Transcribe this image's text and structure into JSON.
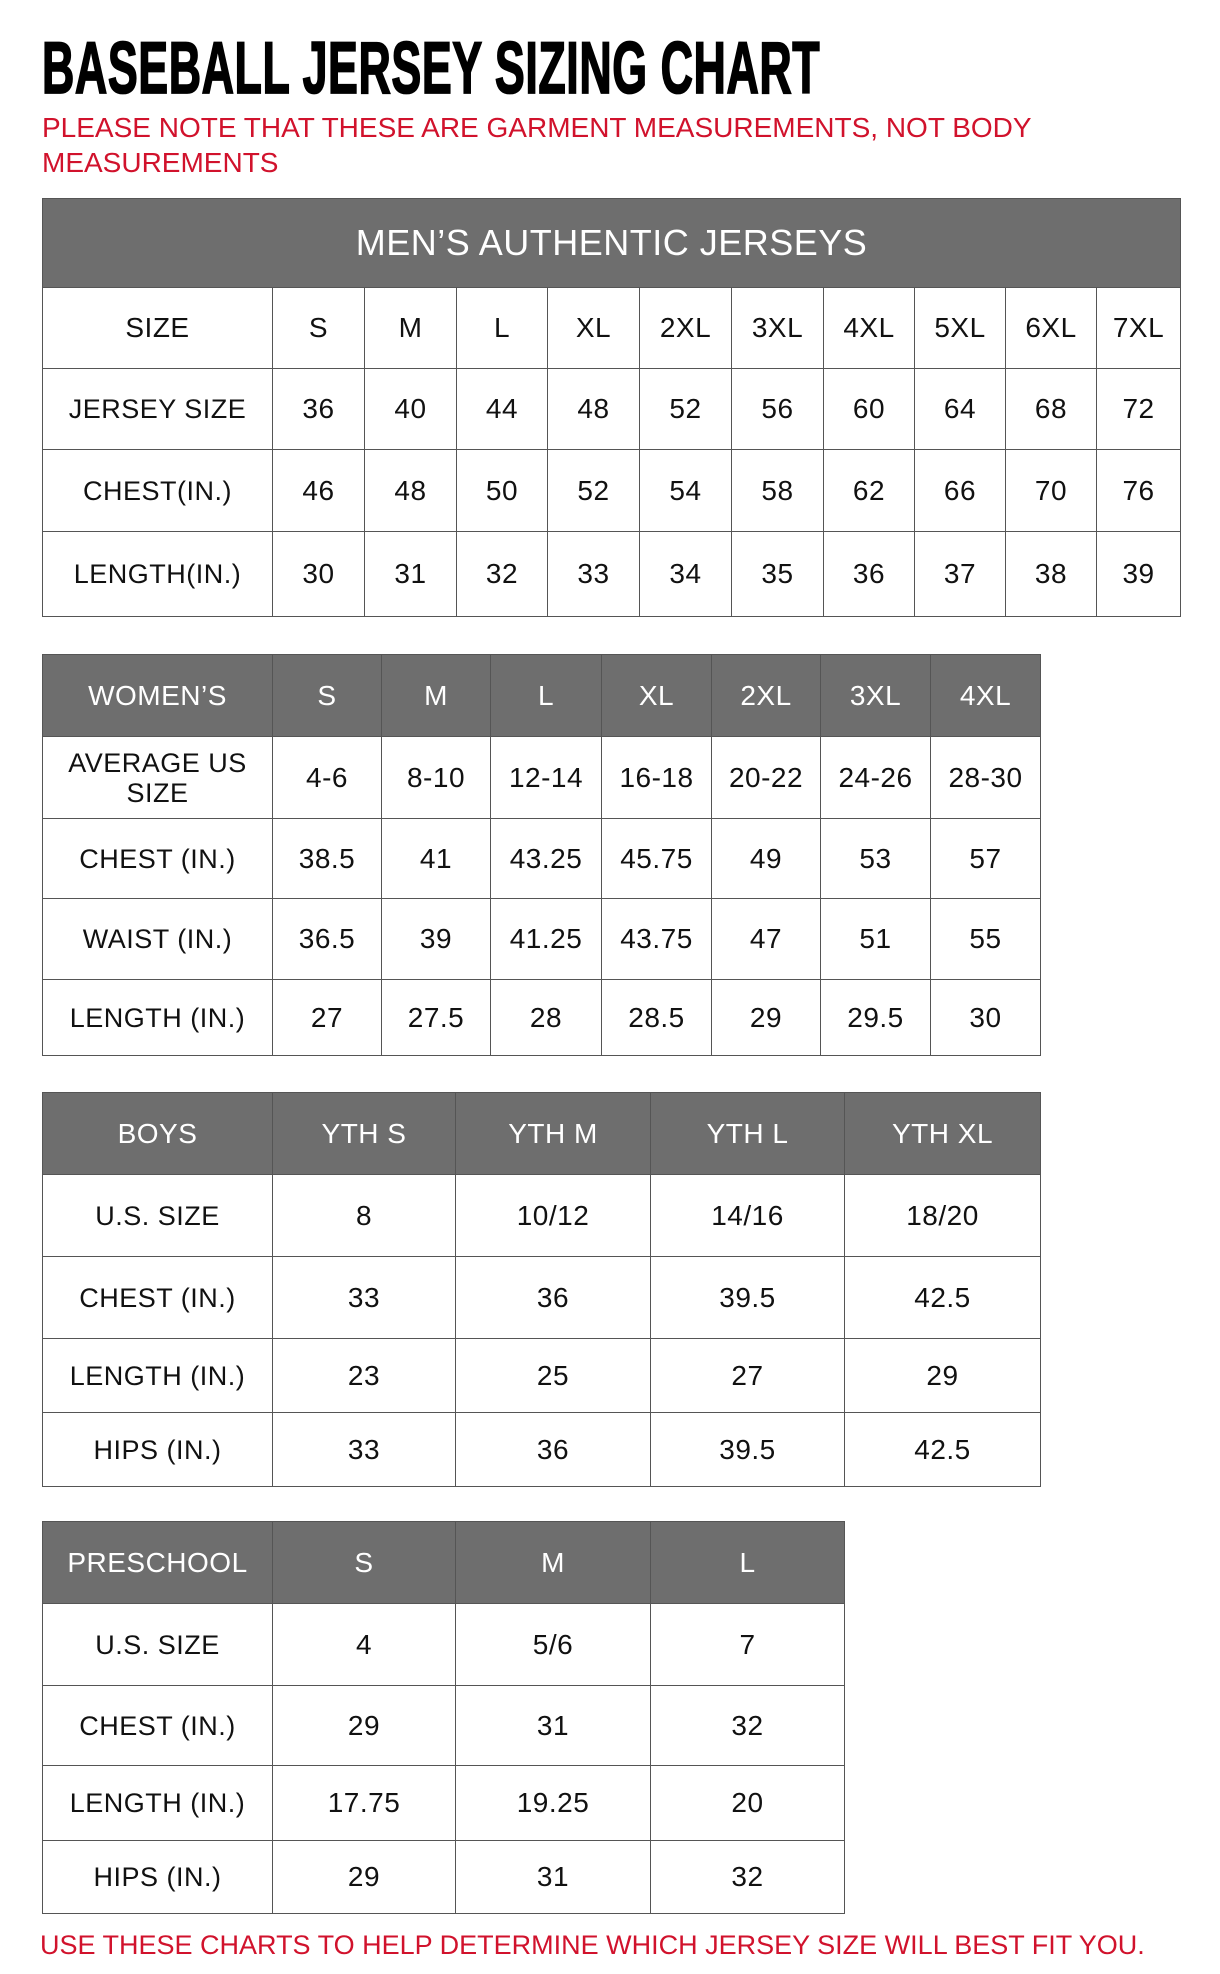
{
  "title": "BASEBALL JERSEY SIZING CHART",
  "note": "PLEASE NOTE THAT THESE ARE GARMENT MEASUREMENTS, NOT BODY MEASUREMENTS",
  "footer": "USE THESE CHARTS TO HELP DETERMINE WHICH JERSEY SIZE WILL BEST FIT YOU.",
  "colors": {
    "header_gray": "#6e6e6e",
    "accent_red": "#d1122c"
  },
  "tables": [
    {
      "id": "mens",
      "band": "MEN’S AUTHENTIC JERSEYS",
      "header_style": "plain",
      "rows": [
        [
          "SIZE",
          "S",
          "M",
          "L",
          "XL",
          "2XL",
          "3XL",
          "4XL",
          "5XL",
          "6XL",
          "7XL"
        ],
        [
          "JERSEY SIZE",
          "36",
          "40",
          "44",
          "48",
          "52",
          "56",
          "60",
          "64",
          "68",
          "72"
        ],
        [
          "CHEST(IN.)",
          "46",
          "48",
          "50",
          "52",
          "54",
          "58",
          "62",
          "66",
          "70",
          "76"
        ],
        [
          "LENGTH(IN.)",
          "30",
          "31",
          "32",
          "33",
          "34",
          "35",
          "36",
          "37",
          "38",
          "39"
        ]
      ]
    },
    {
      "id": "womens",
      "header_style": "gray",
      "rows": [
        [
          "WOMEN’S",
          "S",
          "M",
          "L",
          "XL",
          "2XL",
          "3XL",
          "4XL"
        ],
        [
          "AVERAGE US SIZE",
          "4-6",
          "8-10",
          "12-14",
          "16-18",
          "20-22",
          "24-26",
          "28-30"
        ],
        [
          "CHEST (IN.)",
          "38.5",
          "41",
          "43.25",
          "45.75",
          "49",
          "53",
          "57"
        ],
        [
          "WAIST (IN.)",
          "36.5",
          "39",
          "41.25",
          "43.75",
          "47",
          "51",
          "55"
        ],
        [
          "LENGTH (IN.)",
          "27",
          "27.5",
          "28",
          "28.5",
          "29",
          "29.5",
          "30"
        ]
      ]
    },
    {
      "id": "boys",
      "header_style": "gray",
      "rows": [
        [
          "BOYS",
          "YTH S",
          "YTH M",
          "YTH L",
          "YTH XL"
        ],
        [
          "U.S. SIZE",
          "8",
          "10/12",
          "14/16",
          "18/20"
        ],
        [
          "CHEST (IN.)",
          "33",
          "36",
          "39.5",
          "42.5"
        ],
        [
          "LENGTH (IN.)",
          "23",
          "25",
          "27",
          "29"
        ],
        [
          "HIPS (IN.)",
          "33",
          "36",
          "39.5",
          "42.5"
        ]
      ]
    },
    {
      "id": "preschool",
      "header_style": "gray",
      "rows": [
        [
          "PRESCHOOL",
          "S",
          "M",
          "L"
        ],
        [
          "U.S. SIZE",
          "4",
          "5/6",
          "7"
        ],
        [
          "CHEST (IN.)",
          "29",
          "31",
          "32"
        ],
        [
          "LENGTH (IN.)",
          "17.75",
          "19.25",
          "20"
        ],
        [
          "HIPS (IN.)",
          "29",
          "31",
          "32"
        ]
      ]
    }
  ]
}
